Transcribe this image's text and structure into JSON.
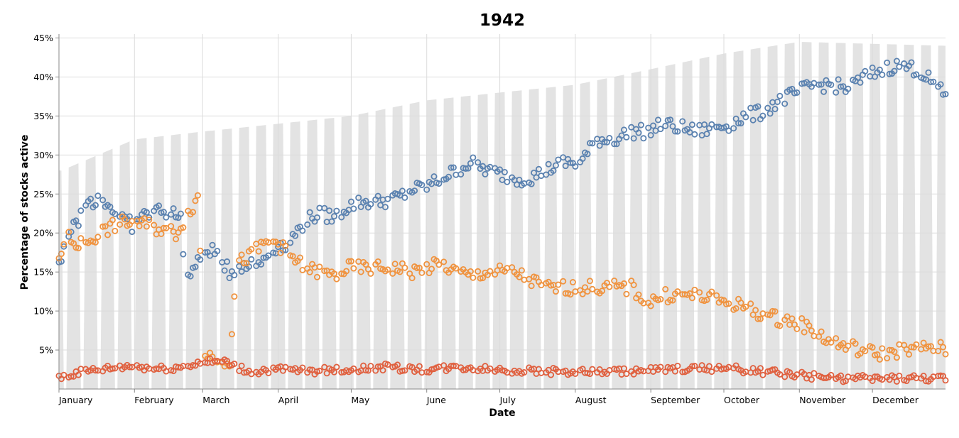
{
  "chart_data": {
    "type": "scatter",
    "title": "1942",
    "xlabel": "Date",
    "ylabel": "Percentage of stocks active",
    "x_ticks": [
      "January",
      "February",
      "March",
      "April",
      "May",
      "June",
      "July",
      "August",
      "September",
      "October",
      "November",
      "December"
    ],
    "y_ticks": [
      "5%",
      "10%",
      "15%",
      "20%",
      "25%",
      "30%",
      "35%",
      "40%",
      "45%"
    ],
    "y_tick_values": [
      5,
      10,
      15,
      20,
      25,
      30,
      35,
      40,
      45
    ],
    "xlim": [
      "1942-01-01",
      "1942-12-31"
    ],
    "ylim": [
      0,
      45.5
    ],
    "grid": true,
    "legend": "none",
    "background_area": {
      "color": "#e3e3e3",
      "description": "daily total range, zero on weekends",
      "anchors": [
        [
          "1942-01-02",
          28
        ],
        [
          "1942-02-01",
          32
        ],
        [
          "1942-03-01",
          33
        ],
        [
          "1942-04-01",
          34
        ],
        [
          "1942-05-01",
          35
        ],
        [
          "1942-06-01",
          37
        ],
        [
          "1942-07-01",
          38
        ],
        [
          "1942-08-01",
          39
        ],
        [
          "1942-09-01",
          41
        ],
        [
          "1942-10-01",
          43
        ],
        [
          "1942-11-01",
          44.5
        ],
        [
          "1942-12-31",
          44
        ]
      ]
    },
    "series": [
      {
        "color": "#5b82b0",
        "anchors": [
          [
            "1942-01-01",
            16
          ],
          [
            "1942-01-04",
            19.5
          ],
          [
            "1942-01-08",
            21
          ],
          [
            "1942-01-13",
            24
          ],
          [
            "1942-01-18",
            24.5
          ],
          [
            "1942-01-25",
            22.5
          ],
          [
            "1942-01-31",
            21
          ],
          [
            "1942-02-06",
            22.5
          ],
          [
            "1942-02-12",
            23
          ],
          [
            "1942-02-20",
            22
          ],
          [
            "1942-02-22",
            14
          ],
          [
            "1942-02-27",
            16
          ],
          [
            "1942-03-03",
            18
          ],
          [
            "1942-03-08",
            17
          ],
          [
            "1942-03-12",
            15
          ],
          [
            "1942-03-18",
            16
          ],
          [
            "1942-03-24",
            16
          ],
          [
            "1942-03-30",
            18
          ],
          [
            "1942-04-06",
            19
          ],
          [
            "1942-04-12",
            21.5
          ],
          [
            "1942-04-18",
            22.5
          ],
          [
            "1942-04-24",
            22
          ],
          [
            "1942-04-30",
            23.5
          ],
          [
            "1942-05-06",
            24
          ],
          [
            "1942-05-12",
            24
          ],
          [
            "1942-05-20",
            24.5
          ],
          [
            "1942-05-26",
            25.5
          ],
          [
            "1942-06-01",
            26
          ],
          [
            "1942-06-07",
            27
          ],
          [
            "1942-06-13",
            28
          ],
          [
            "1942-06-19",
            29
          ],
          [
            "1942-06-26",
            28
          ],
          [
            "1942-07-02",
            27.5
          ],
          [
            "1942-07-07",
            27
          ],
          [
            "1942-07-13",
            27
          ],
          [
            "1942-07-20",
            28
          ],
          [
            "1942-07-27",
            29
          ],
          [
            "1942-08-03",
            29
          ],
          [
            "1942-08-10",
            32
          ],
          [
            "1942-08-17",
            32
          ],
          [
            "1942-08-24",
            33
          ],
          [
            "1942-08-31",
            33
          ],
          [
            "1942-09-06",
            34
          ],
          [
            "1942-09-13",
            33.5
          ],
          [
            "1942-09-20",
            33
          ],
          [
            "1942-09-27",
            33.5
          ],
          [
            "1942-10-04",
            34
          ],
          [
            "1942-10-10",
            35
          ],
          [
            "1942-10-17",
            35.5
          ],
          [
            "1942-10-24",
            37
          ],
          [
            "1942-10-31",
            38
          ],
          [
            "1942-11-07",
            39
          ],
          [
            "1942-11-14",
            39
          ],
          [
            "1942-11-21",
            38.5
          ],
          [
            "1942-11-28",
            40
          ],
          [
            "1942-12-05",
            41
          ],
          [
            "1942-12-12",
            41.5
          ],
          [
            "1942-12-19",
            41
          ],
          [
            "1942-12-25",
            39.5
          ],
          [
            "1942-12-31",
            37.5
          ]
        ]
      },
      {
        "color": "#f0933f",
        "anchors": [
          [
            "1942-01-01",
            17
          ],
          [
            "1942-01-04",
            19.5
          ],
          [
            "1942-01-09",
            18.5
          ],
          [
            "1942-01-13",
            19
          ],
          [
            "1942-01-18",
            20
          ],
          [
            "1942-01-24",
            21
          ],
          [
            "1942-01-31",
            21.5
          ],
          [
            "1942-02-06",
            21
          ],
          [
            "1942-02-12",
            20.5
          ],
          [
            "1942-02-18",
            20
          ],
          [
            "1942-02-24",
            23
          ],
          [
            "1942-02-27",
            24.5
          ],
          [
            "1942-03-02",
            4.5
          ],
          [
            "1942-03-08",
            4
          ],
          [
            "1942-03-12",
            3.5
          ],
          [
            "1942-03-15",
            16
          ],
          [
            "1942-03-20",
            17
          ],
          [
            "1942-03-26",
            18.5
          ],
          [
            "1942-03-31",
            19
          ],
          [
            "1942-04-06",
            17
          ],
          [
            "1942-04-12",
            15.5
          ],
          [
            "1942-04-18",
            15
          ],
          [
            "1942-04-24",
            14.5
          ],
          [
            "1942-04-30",
            15.5
          ],
          [
            "1942-05-06",
            15.5
          ],
          [
            "1942-05-12",
            15.5
          ],
          [
            "1942-05-20",
            15.5
          ],
          [
            "1942-05-26",
            15
          ],
          [
            "1942-06-01",
            15.5
          ],
          [
            "1942-06-07",
            16
          ],
          [
            "1942-06-13",
            15
          ],
          [
            "1942-06-19",
            14.5
          ],
          [
            "1942-06-26",
            15
          ],
          [
            "1942-07-02",
            15
          ],
          [
            "1942-07-07",
            15
          ],
          [
            "1942-07-13",
            14
          ],
          [
            "1942-07-20",
            13
          ],
          [
            "1942-07-27",
            13
          ],
          [
            "1942-08-03",
            13
          ],
          [
            "1942-08-10",
            13
          ],
          [
            "1942-08-17",
            13
          ],
          [
            "1942-08-24",
            13
          ],
          [
            "1942-08-31",
            11
          ],
          [
            "1942-09-06",
            12
          ],
          [
            "1942-09-13",
            12
          ],
          [
            "1942-09-20",
            12
          ],
          [
            "1942-09-27",
            11.5
          ],
          [
            "1942-10-04",
            11
          ],
          [
            "1942-10-10",
            10.5
          ],
          [
            "1942-10-17",
            9.5
          ],
          [
            "1942-10-24",
            9
          ],
          [
            "1942-10-31",
            8.5
          ],
          [
            "1942-11-07",
            7.5
          ],
          [
            "1942-11-14",
            6
          ],
          [
            "1942-11-21",
            5.5
          ],
          [
            "1942-11-28",
            4.8
          ],
          [
            "1942-12-05",
            4.5
          ],
          [
            "1942-12-12",
            5
          ],
          [
            "1942-12-19",
            5
          ],
          [
            "1942-12-25",
            5.5
          ],
          [
            "1942-12-31",
            5
          ]
        ]
      },
      {
        "color": "#e0603f",
        "anchors": [
          [
            "1942-01-01",
            1.5
          ],
          [
            "1942-01-10",
            2.2
          ],
          [
            "1942-01-20",
            2.6
          ],
          [
            "1942-01-31",
            3
          ],
          [
            "1942-02-10",
            2.6
          ],
          [
            "1942-02-20",
            2.8
          ],
          [
            "1942-03-01",
            3.5
          ],
          [
            "1942-03-10",
            3.5
          ],
          [
            "1942-03-20",
            2.2
          ],
          [
            "1942-03-31",
            2.5
          ],
          [
            "1942-04-15",
            2.3
          ],
          [
            "1942-05-01",
            2.5
          ],
          [
            "1942-05-15",
            2.8
          ],
          [
            "1942-06-01",
            2.5
          ],
          [
            "1942-06-15",
            2.8
          ],
          [
            "1942-07-01",
            2.5
          ],
          [
            "1942-07-15",
            2.3
          ],
          [
            "1942-08-01",
            2.2
          ],
          [
            "1942-08-15",
            2.2
          ],
          [
            "1942-09-01",
            2.4
          ],
          [
            "1942-09-15",
            2.6
          ],
          [
            "1942-10-01",
            2.7
          ],
          [
            "1942-10-15",
            2.3
          ],
          [
            "1942-11-01",
            1.8
          ],
          [
            "1942-11-15",
            1.4
          ],
          [
            "1942-12-01",
            1.3
          ],
          [
            "1942-12-15",
            1.4
          ],
          [
            "1942-12-31",
            1.3
          ]
        ]
      }
    ]
  }
}
